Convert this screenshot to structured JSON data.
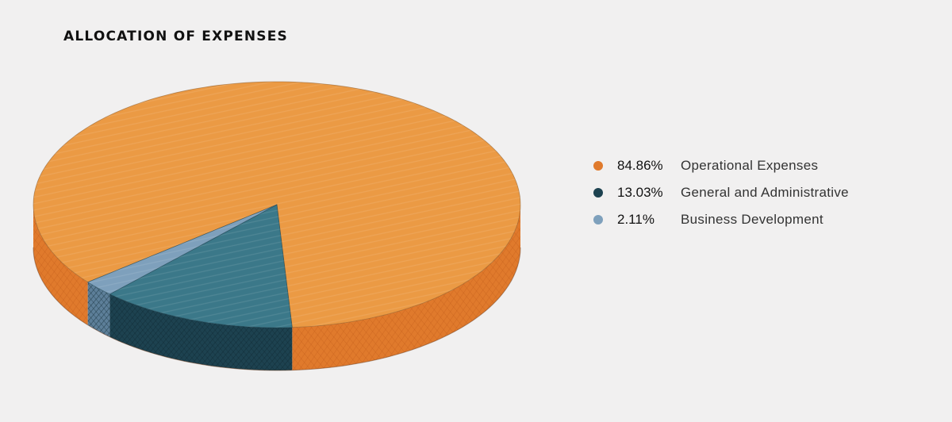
{
  "title": "ALLOCATION OF EXPENSES",
  "chart_data": {
    "type": "pie",
    "title": "ALLOCATION OF EXPENSES",
    "slices": [
      {
        "label": "Operational Expenses",
        "value": 84.86,
        "value_label": "84.86%",
        "color": "#eb9a44",
        "side_color": "#e07a2c"
      },
      {
        "label": "General and Administrative",
        "value": 13.03,
        "value_label": "13.03%",
        "color": "#3b7889",
        "side_color": "#1d4250"
      },
      {
        "label": "Business Development",
        "value": 2.11,
        "value_label": "2.11%",
        "color": "#7ea0bc",
        "side_color": "#5d7f99"
      }
    ],
    "legend_position": "right",
    "style": "3d-tilted"
  }
}
